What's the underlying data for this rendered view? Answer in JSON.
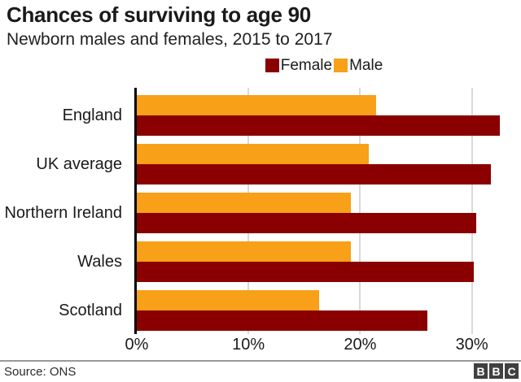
{
  "header": {
    "title": "Chances of surviving to age 90",
    "subtitle": "Newborn males and females, 2015 to 2017"
  },
  "chart_data": {
    "type": "bar",
    "orientation": "horizontal",
    "title": "Chances of surviving to age 90",
    "subtitle": "Newborn males and females, 2015 to 2017",
    "categories": [
      "England",
      "UK average",
      "Northern Ireland",
      "Wales",
      "Scotland"
    ],
    "series": [
      {
        "name": "Female",
        "color": "#8a0000",
        "values": [
          32.5,
          31.7,
          30.4,
          30.2,
          26.0
        ]
      },
      {
        "name": "Male",
        "color": "#f7a018",
        "values": [
          21.4,
          20.8,
          19.2,
          19.2,
          16.3
        ]
      }
    ],
    "bar_order_top_to_bottom_in_group": [
      "Male",
      "Female"
    ],
    "xlabel": "",
    "ylabel": "",
    "xticks": [
      {
        "value": 0,
        "label": "0%"
      },
      {
        "value": 10,
        "label": "10%"
      },
      {
        "value": 20,
        "label": "20%"
      },
      {
        "value": 30,
        "label": "30%"
      }
    ],
    "xlim": [
      0,
      33.6
    ],
    "grid": "vertical-gridlines-on",
    "legend_position": "top-center"
  },
  "legend": {
    "items": [
      {
        "label": "Female",
        "color": "#8a0000"
      },
      {
        "label": "Male",
        "color": "#f7a018"
      }
    ]
  },
  "footer": {
    "source": "Source: ONS",
    "logo_letters": [
      "B",
      "B",
      "C"
    ]
  },
  "colors": {
    "female_bar": "#8a0000",
    "male_bar": "#f7a018",
    "axis": "#000000",
    "gridline": "#d9d9d9",
    "divider": "#999999",
    "logo_box": "#404040"
  }
}
